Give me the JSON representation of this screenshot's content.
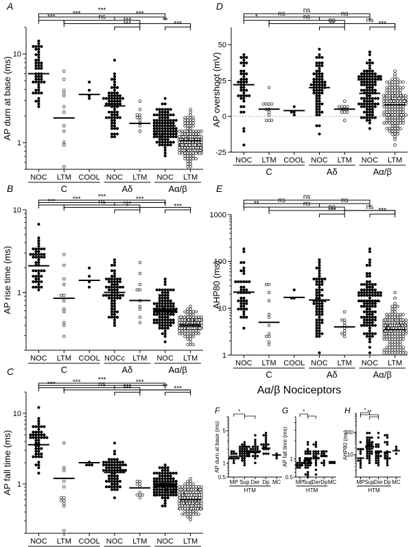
{
  "figure": {
    "subtitle": "Aα/β Nociceptors"
  },
  "chart_data": [
    {
      "panel": "A",
      "type": "scatter",
      "ylabel": "AP durn at base (ms)",
      "yscale": "log",
      "ylim": [
        0.5,
        20
      ],
      "yticks": [
        {
          "v": 1,
          "label": "1"
        },
        {
          "v": 10,
          "label": "10"
        }
      ],
      "categories": [
        "NOC",
        "LTM",
        "COOL",
        "NOC",
        "LTM",
        "NOC",
        "LTM"
      ],
      "groups": [
        {
          "label": "C",
          "from": 0,
          "to": 2
        },
        {
          "label": "Aδ",
          "from": 3,
          "to": 4
        },
        {
          "label": "Aα/β",
          "from": 5,
          "to": 6
        }
      ],
      "series": [
        {
          "n": 50,
          "median": 6.0,
          "spread": 0.22,
          "filled": true
        },
        {
          "n": 12,
          "median": 1.9,
          "spread": 0.28,
          "filled": false
        },
        {
          "n": 4,
          "median": 3.5,
          "spread": 0.08,
          "filled": true
        },
        {
          "n": 70,
          "median": 2.6,
          "spread": 0.18,
          "filled": true
        },
        {
          "n": 10,
          "median": 1.65,
          "spread": 0.12,
          "filled": false
        },
        {
          "n": 110,
          "median": 1.55,
          "spread": 0.13,
          "filled": true
        },
        {
          "n": 160,
          "median": 1.05,
          "spread": 0.12,
          "filled": false
        }
      ],
      "brackets": [
        {
          "from": 0,
          "to": 5,
          "label": "***"
        },
        {
          "from": 0,
          "to": 3,
          "label": "***"
        },
        {
          "from": 3,
          "to": 5,
          "label": "***"
        },
        {
          "from": 0,
          "to": 1,
          "label": "***"
        },
        {
          "from": 1,
          "to": 4,
          "label": "ns"
        },
        {
          "from": 1,
          "to": 6,
          "label": "***"
        },
        {
          "from": 4,
          "to": 6,
          "label": "**"
        },
        {
          "from": 3,
          "to": 4,
          "label": "***"
        },
        {
          "from": 5,
          "to": 6,
          "label": "***"
        }
      ]
    },
    {
      "panel": "B",
      "type": "scatter",
      "ylabel": "AP rise time (ms)",
      "yscale": "log",
      "ylim": [
        0.2,
        10
      ],
      "yticks": [
        {
          "v": 1,
          "label": "1"
        },
        {
          "v": 10,
          "label": "10"
        }
      ],
      "categories": [
        "NOC",
        "LTM",
        "COOL",
        "NOCc",
        "LTM",
        "NOC",
        "LTM"
      ],
      "groups": [
        {
          "label": "C",
          "from": 0,
          "to": 2
        },
        {
          "label": "Aδ",
          "from": 3,
          "to": 4
        },
        {
          "label": "Aα/β",
          "from": 5,
          "to": 6
        }
      ],
      "series": [
        {
          "n": 50,
          "median": 2.1,
          "spread": 0.2,
          "filled": true
        },
        {
          "n": 12,
          "median": 0.85,
          "spread": 0.26,
          "filled": false
        },
        {
          "n": 4,
          "median": 1.4,
          "spread": 0.06,
          "filled": true
        },
        {
          "n": 70,
          "median": 1.0,
          "spread": 0.17,
          "filled": true
        },
        {
          "n": 10,
          "median": 0.8,
          "spread": 0.2,
          "filled": false
        },
        {
          "n": 110,
          "median": 0.6,
          "spread": 0.15,
          "filled": true
        },
        {
          "n": 150,
          "median": 0.4,
          "spread": 0.08,
          "filled": false
        }
      ],
      "brackets": [
        {
          "from": 0,
          "to": 5,
          "label": "***"
        },
        {
          "from": 0,
          "to": 3,
          "label": "***"
        },
        {
          "from": 3,
          "to": 5,
          "label": "***"
        },
        {
          "from": 0,
          "to": 1,
          "label": "***"
        },
        {
          "from": 1,
          "to": 4,
          "label": "ns"
        },
        {
          "from": 1,
          "to": 6,
          "label": "***"
        },
        {
          "from": 4,
          "to": 6,
          "label": "*"
        },
        {
          "from": 3,
          "to": 4,
          "label": "*"
        },
        {
          "from": 5,
          "to": 6,
          "label": "***"
        }
      ]
    },
    {
      "panel": "C",
      "type": "scatter",
      "ylabel": "AP fall time (ms)",
      "yscale": "log",
      "ylim": [
        0.2,
        20
      ],
      "yticks": [
        {
          "v": 1,
          "label": "1"
        },
        {
          "v": 10,
          "label": "10"
        }
      ],
      "categories": [
        "NOC",
        "LTM",
        "COOL",
        "NOC",
        "LTM",
        "NOC",
        "LTM"
      ],
      "groups": [
        {
          "label": "C",
          "from": 0,
          "to": 2
        },
        {
          "label": "Aδ",
          "from": 3,
          "to": 4
        },
        {
          "label": "Aα/β",
          "from": 5,
          "to": 6
        }
      ],
      "series": [
        {
          "n": 50,
          "median": 3.6,
          "spread": 0.2,
          "filled": true
        },
        {
          "n": 12,
          "median": 1.2,
          "spread": 0.3,
          "filled": false
        },
        {
          "n": 4,
          "median": 2.0,
          "spread": 0.1,
          "filled": true
        },
        {
          "n": 70,
          "median": 1.45,
          "spread": 0.15,
          "filled": true
        },
        {
          "n": 10,
          "median": 0.88,
          "spread": 0.07,
          "filled": false
        },
        {
          "n": 110,
          "median": 0.95,
          "spread": 0.13,
          "filled": true
        },
        {
          "n": 160,
          "median": 0.6,
          "spread": 0.12,
          "filled": false
        }
      ],
      "brackets": [
        {
          "from": 0,
          "to": 5,
          "label": "***"
        },
        {
          "from": 0,
          "to": 3,
          "label": "***"
        },
        {
          "from": 3,
          "to": 5,
          "label": "***"
        },
        {
          "from": 0,
          "to": 1,
          "label": "***"
        },
        {
          "from": 1,
          "to": 4,
          "label": "ns"
        },
        {
          "from": 1,
          "to": 6,
          "label": "***"
        },
        {
          "from": 4,
          "to": 6,
          "label": "**"
        },
        {
          "from": 3,
          "to": 4,
          "label": "***"
        },
        {
          "from": 5,
          "to": 6,
          "label": "***"
        }
      ]
    },
    {
      "panel": "D",
      "type": "scatter",
      "ylabel": "AP overshoot (mV)",
      "yscale": "linear",
      "ylim": [
        -25,
        62
      ],
      "yticks": [
        {
          "v": -25,
          "label": "-25"
        },
        {
          "v": 0,
          "label": "0"
        },
        {
          "v": 25,
          "label": "25"
        },
        {
          "v": 50,
          "label": "50"
        }
      ],
      "zero_line": true,
      "categories": [
        "NOC",
        "LTM",
        "COOL",
        "NOC",
        "LTM",
        "NOC",
        "LTM"
      ],
      "groups": [
        {
          "label": "C",
          "from": 0,
          "to": 2
        },
        {
          "label": "Aδ",
          "from": 3,
          "to": 4
        },
        {
          "label": "Aα/β",
          "from": 5,
          "to": 6
        }
      ],
      "series": [
        {
          "n": 45,
          "median": 22,
          "spread": 14,
          "filled": true
        },
        {
          "n": 12,
          "median": 5,
          "spread": 6,
          "filled": false
        },
        {
          "n": 4,
          "median": 4,
          "spread": 2,
          "filled": true
        },
        {
          "n": 70,
          "median": 20,
          "spread": 12,
          "filled": true
        },
        {
          "n": 12,
          "median": 5,
          "spread": 3,
          "filled": false
        },
        {
          "n": 110,
          "median": 16,
          "spread": 12,
          "filled": true
        },
        {
          "n": 160,
          "median": 8,
          "spread": 10,
          "filled": false
        }
      ],
      "brackets": [
        {
          "from": 0,
          "to": 5,
          "label": "ns"
        },
        {
          "from": 0,
          "to": 3,
          "label": "ns"
        },
        {
          "from": 3,
          "to": 5,
          "label": "ns"
        },
        {
          "from": 0,
          "to": 1,
          "label": "*"
        },
        {
          "from": 1,
          "to": 4,
          "label": "ns"
        },
        {
          "from": 1,
          "to": 6,
          "label": "ns"
        },
        {
          "from": 4,
          "to": 6,
          "label": "ns"
        },
        {
          "from": 3,
          "to": 4,
          "label": "**"
        },
        {
          "from": 5,
          "to": 6,
          "label": "***"
        }
      ]
    },
    {
      "panel": "E",
      "type": "scatter",
      "ylabel": "AHP80 (ms)",
      "yscale": "log",
      "ylim": [
        1,
        1000
      ],
      "yticks": [
        {
          "v": 1,
          "label": "1"
        },
        {
          "v": 10,
          "label": "10"
        },
        {
          "v": 100,
          "label": "100"
        },
        {
          "v": 1000,
          "label": "1000"
        }
      ],
      "categories": [
        "NOC",
        "LTM",
        "COOL",
        "NOC",
        "LTM",
        "NOC",
        "LTM"
      ],
      "groups": [
        {
          "label": "C",
          "from": 0,
          "to": 2
        },
        {
          "label": "Aδ",
          "from": 3,
          "to": 4
        },
        {
          "label": "Aα/β",
          "from": 5,
          "to": 6
        }
      ],
      "series": [
        {
          "n": 45,
          "median": 22,
          "spread": 0.45,
          "filled": true
        },
        {
          "n": 12,
          "median": 5,
          "spread": 0.35,
          "filled": false
        },
        {
          "n": 3,
          "median": 17,
          "spread": 0.15,
          "filled": true
        },
        {
          "n": 70,
          "median": 15,
          "spread": 0.45,
          "filled": true
        },
        {
          "n": 10,
          "median": 4,
          "spread": 0.12,
          "filled": false
        },
        {
          "n": 110,
          "median": 14,
          "spread": 0.45,
          "filled": true
        },
        {
          "n": 160,
          "median": 3.5,
          "spread": 0.3,
          "filled": false
        }
      ],
      "brackets": [
        {
          "from": 0,
          "to": 5,
          "label": "ns"
        },
        {
          "from": 0,
          "to": 3,
          "label": "ns"
        },
        {
          "from": 3,
          "to": 5,
          "label": "ns"
        },
        {
          "from": 0,
          "to": 1,
          "label": "**"
        },
        {
          "from": 1,
          "to": 4,
          "label": "ns"
        },
        {
          "from": 1,
          "to": 6,
          "label": "ns"
        },
        {
          "from": 4,
          "to": 6,
          "label": "ns"
        },
        {
          "from": 3,
          "to": 4,
          "label": "***"
        },
        {
          "from": 5,
          "to": 6,
          "label": "***"
        }
      ]
    },
    {
      "panel": "F",
      "type": "scatter",
      "ylabel": "AP durn at base (ms)",
      "yscale": "log",
      "ylim": [
        0.5,
        10
      ],
      "yticks": [
        {
          "v": 0.5,
          "label": "0.5"
        },
        {
          "v": 1,
          "label": "1"
        },
        {
          "v": 5,
          "label": "5"
        }
      ],
      "categories": [
        "MP",
        "Sup",
        "Der",
        "Dp",
        "MC"
      ],
      "groups": [
        {
          "label": "HTM",
          "from": 0,
          "to": 3
        }
      ],
      "series": [
        {
          "n": 12,
          "median": 1.4,
          "spread": 0.1,
          "filled": true
        },
        {
          "n": 40,
          "median": 1.8,
          "spread": 0.13,
          "filled": true
        },
        {
          "n": 22,
          "median": 1.7,
          "spread": 0.12,
          "filled": true
        },
        {
          "n": 18,
          "median": 2.1,
          "spread": 0.15,
          "filled": true
        },
        {
          "n": 3,
          "median": 1.5,
          "spread": 0.05,
          "filled": true
        }
      ],
      "brackets": [
        {
          "from": 0,
          "to": 1,
          "label": "*"
        },
        {
          "from": 1,
          "to": 2,
          "label": ""
        }
      ]
    },
    {
      "panel": "G",
      "type": "scatter",
      "ylabel": "AP fall time (ms)",
      "yscale": "log",
      "ylim": [
        0.5,
        5
      ],
      "yticks": [
        {
          "v": 0.5,
          "label": "0.5"
        },
        {
          "v": 1,
          "label": "1"
        }
      ],
      "categories": [
        "MP",
        "Sup",
        "Der",
        "Dp",
        "MC"
      ],
      "groups": [
        {
          "label": "HTM",
          "from": 0,
          "to": 3
        }
      ],
      "series": [
        {
          "n": 12,
          "median": 0.78,
          "spread": 0.08,
          "filled": true
        },
        {
          "n": 40,
          "median": 0.98,
          "spread": 0.12,
          "filled": true
        },
        {
          "n": 22,
          "median": 1.05,
          "spread": 0.12,
          "filled": true
        },
        {
          "n": 18,
          "median": 1.1,
          "spread": 0.12,
          "filled": true
        },
        {
          "n": 3,
          "median": 0.9,
          "spread": 0.04,
          "filled": true
        }
      ],
      "brackets": [
        {
          "from": 0,
          "to": 1,
          "label": "*"
        },
        {
          "from": 1,
          "to": 2,
          "label": ""
        }
      ]
    },
    {
      "panel": "H",
      "type": "scatter",
      "ylabel": "AHP80 (ms)",
      "yscale": "log",
      "ylim": [
        1,
        700
      ],
      "yticks": [
        {
          "v": 10,
          "label": "10"
        },
        {
          "v": 100,
          "label": "100"
        }
      ],
      "categories": [
        "MP",
        "Sup",
        "Der",
        "Dp",
        "MC"
      ],
      "groups": [
        {
          "label": "HTM",
          "from": 0,
          "to": 3
        }
      ],
      "series": [
        {
          "n": 12,
          "median": 7,
          "spread": 0.25,
          "filled": true
        },
        {
          "n": 40,
          "median": 18,
          "spread": 0.35,
          "filled": true
        },
        {
          "n": 22,
          "median": 13,
          "spread": 0.4,
          "filled": true
        },
        {
          "n": 18,
          "median": 13,
          "spread": 0.4,
          "filled": true
        },
        {
          "n": 3,
          "median": 15,
          "spread": 0.1,
          "filled": true
        }
      ],
      "brackets": [
        {
          "from": 0,
          "to": 1,
          "label": "*"
        },
        {
          "from": 0,
          "to": 2,
          "label": "**"
        },
        {
          "from": 1,
          "to": 2,
          "label": ""
        }
      ]
    }
  ]
}
